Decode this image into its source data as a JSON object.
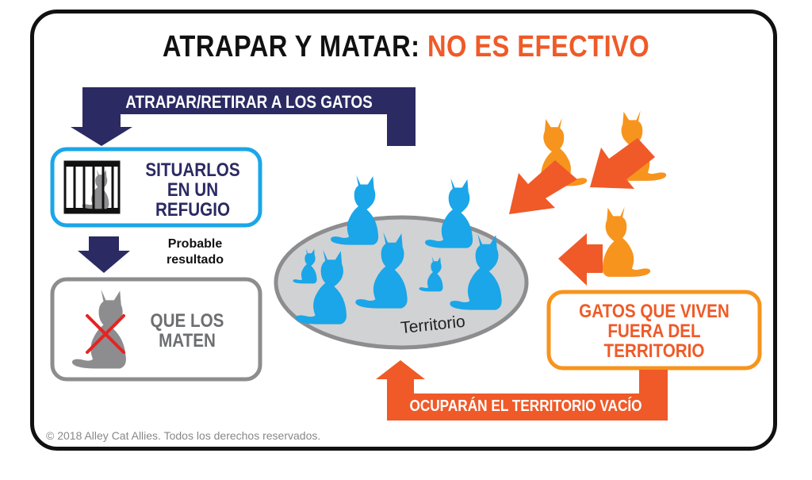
{
  "heading": {
    "part1": "ATRAPAR Y MATAR:",
    "part2": "NO ES EFECTIVO"
  },
  "steps": {
    "remove_label": "ATRAPAR/RETIRAR A LOS GATOS",
    "shelter_label": "SITUARLOS EN UN REFUGIO",
    "probable_label": "Probable resultado",
    "killed_label": "QUE LOS MATEN",
    "territory_label": "Territorio",
    "outside_cats_label": "GATOS QUE VIVEN FUERA DEL TERRITORIO",
    "occupy_label": "OCUPARÁN EL TERRITORIO VACÍO"
  },
  "footer": {
    "copyright": "© 2018 Alley Cat Allies. Todos los derechos reservados."
  },
  "colors": {
    "navy": "#2b2a63",
    "blue_cat": "#1aa6e8",
    "cyan_border": "#1aa6e8",
    "orange": "#ef5a28",
    "light_orange": "#f7941d",
    "gray": "#8d8d8f",
    "territory_fill": "#d1d2d4",
    "red_x": "#e52421"
  },
  "icons": {
    "cage": "cat-in-cage-icon",
    "cross": "red-x-icon"
  }
}
